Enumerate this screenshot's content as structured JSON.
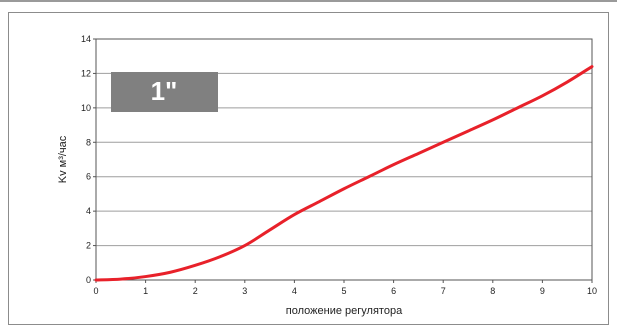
{
  "chart_data": {
    "type": "line",
    "xlabel": "положение регулятора",
    "ylabel": "Kv м³/час",
    "xlim": [
      0,
      10
    ],
    "ylim": [
      0,
      14
    ],
    "x_ticks": [
      0,
      1,
      2,
      3,
      4,
      5,
      6,
      7,
      8,
      9,
      10
    ],
    "y_ticks": [
      0,
      2,
      4,
      6,
      8,
      10,
      12,
      14
    ],
    "grid": "horizontal",
    "badge": "1\"",
    "series": [
      {
        "color": "#e8212a",
        "x": [
          0,
          0.5,
          1,
          1.5,
          2,
          2.5,
          3,
          3.5,
          4,
          4.5,
          5,
          5.5,
          6,
          6.5,
          7,
          7.5,
          8,
          8.5,
          9,
          9.5,
          10
        ],
        "y": [
          0,
          0.05,
          0.2,
          0.45,
          0.85,
          1.35,
          2.0,
          2.9,
          3.8,
          4.55,
          5.3,
          6.0,
          6.7,
          7.35,
          8.0,
          8.65,
          9.3,
          10.0,
          10.7,
          11.5,
          12.4
        ]
      }
    ]
  }
}
